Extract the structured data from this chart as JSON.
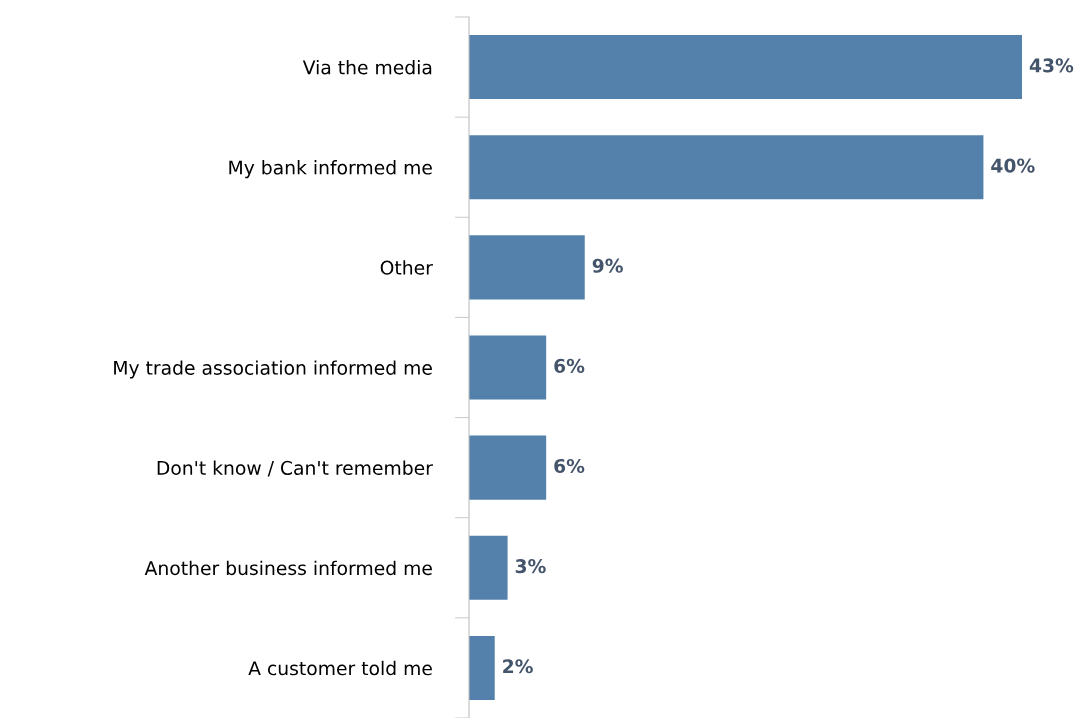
{
  "chart_data": {
    "type": "bar",
    "orientation": "horizontal",
    "categories": [
      "Via the media",
      "My bank informed me",
      "Other",
      "My trade association informed me",
      "Don't know / Can't remember",
      "Another business informed me",
      "A customer told me"
    ],
    "values": [
      43,
      40,
      9,
      6,
      6,
      3,
      2
    ],
    "value_labels": [
      "43%",
      "40%",
      "9%",
      "6%",
      "6%",
      "3%",
      "2%"
    ],
    "color": "#5381ac",
    "tick_labels": "y",
    "grid": false,
    "legend": false
  }
}
